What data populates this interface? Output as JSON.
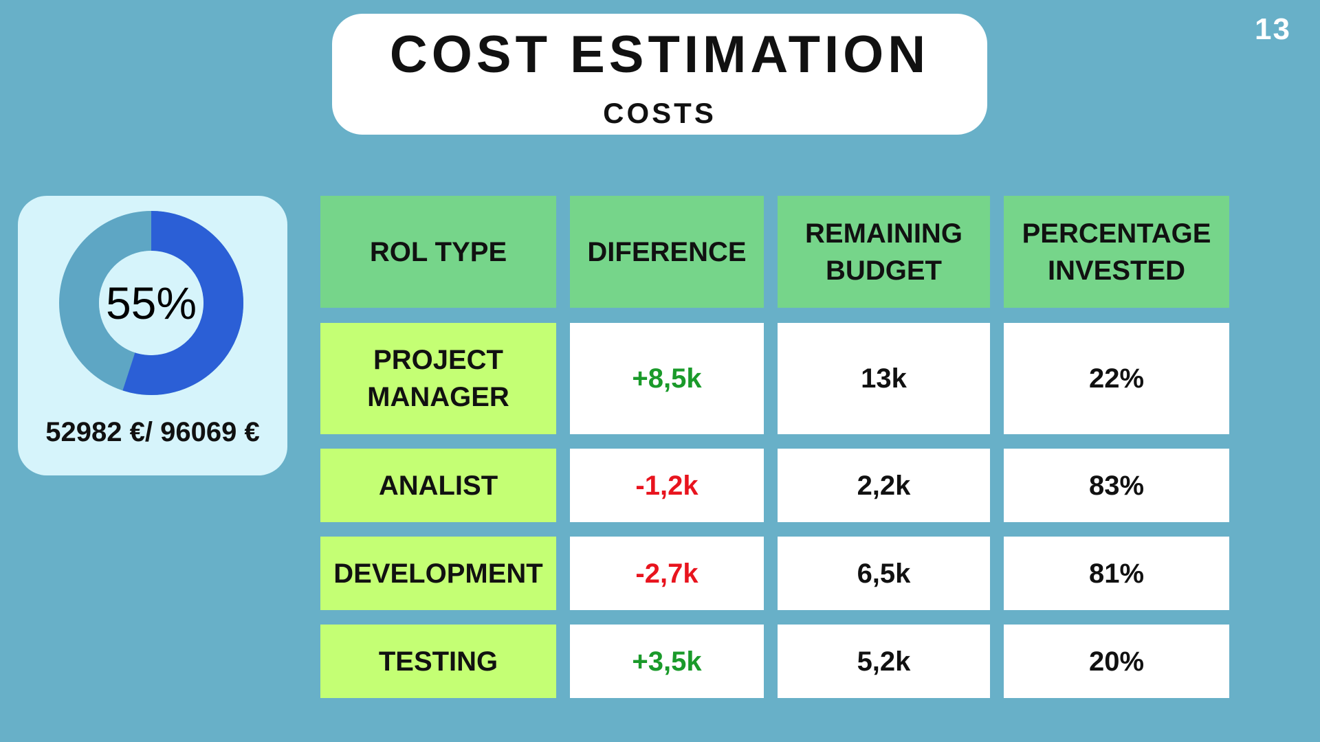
{
  "page_number": "13",
  "header": {
    "title": "COST ESTIMATION",
    "subtitle": "COSTS"
  },
  "budget": {
    "percent_label": "55%",
    "percent_value": 55,
    "amount_label": "52982 €/ 96069 €",
    "colors": {
      "filled": "#2b5fd6",
      "remaining": "#5ea6c4",
      "hole": "#d6f4fb"
    }
  },
  "table": {
    "headers": [
      "ROL TYPE",
      "DIFERENCE",
      "REMAINING BUDGET",
      "PERCENTAGE INVESTED"
    ],
    "rows": [
      {
        "role": "PROJECT MANAGER",
        "difference": "+8,5k",
        "remaining": "13k",
        "percentage": "22%"
      },
      {
        "role": "ANALIST",
        "difference": "-1,2k",
        "remaining": "2,2k",
        "percentage": "83%"
      },
      {
        "role": "DEVELOPMENT",
        "difference": "-2,7k",
        "remaining": "6,5k",
        "percentage": "81%"
      },
      {
        "role": "TESTING",
        "difference": "+3,5k",
        "remaining": "5,2k",
        "percentage": "20%"
      }
    ],
    "colors": {
      "header_bg": "#76d58a",
      "role_bg": "#c4ff74",
      "value_bg": "#ffffff",
      "positive": "#1a9a2a",
      "negative": "#e8141e"
    }
  }
}
